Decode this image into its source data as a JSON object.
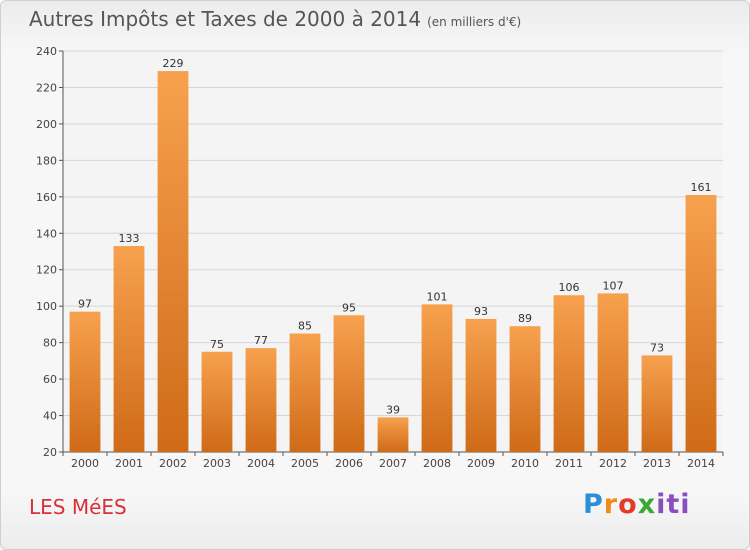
{
  "title": "Autres Impôts et Taxes de 2000 à 2014",
  "subtitle": "(en milliers d'€)",
  "place": "LES MéES",
  "logo": {
    "text": "Proxiti",
    "parts": [
      "P",
      "r",
      "o",
      "x",
      "iti"
    ]
  },
  "colors": {
    "bar_top": "#f7a14e",
    "bar_bottom": "#cf6a18",
    "title": "#555555",
    "place": "#d9303a",
    "grid": "#d6d6d6"
  },
  "chart_data": {
    "type": "bar",
    "title": "Autres Impôts et Taxes de 2000 à 2014",
    "subtitle": "(en milliers d'€)",
    "categories": [
      "2000",
      "2001",
      "2002",
      "2003",
      "2004",
      "2005",
      "2006",
      "2007",
      "2008",
      "2009",
      "2010",
      "2011",
      "2012",
      "2013",
      "2014"
    ],
    "values": [
      97,
      133,
      229,
      75,
      77,
      85,
      95,
      39,
      101,
      93,
      89,
      106,
      107,
      73,
      161
    ],
    "ylim": [
      20,
      240
    ],
    "yticks": [
      20,
      40,
      60,
      80,
      100,
      120,
      140,
      160,
      180,
      200,
      220,
      240
    ],
    "grid": "horizontal"
  }
}
